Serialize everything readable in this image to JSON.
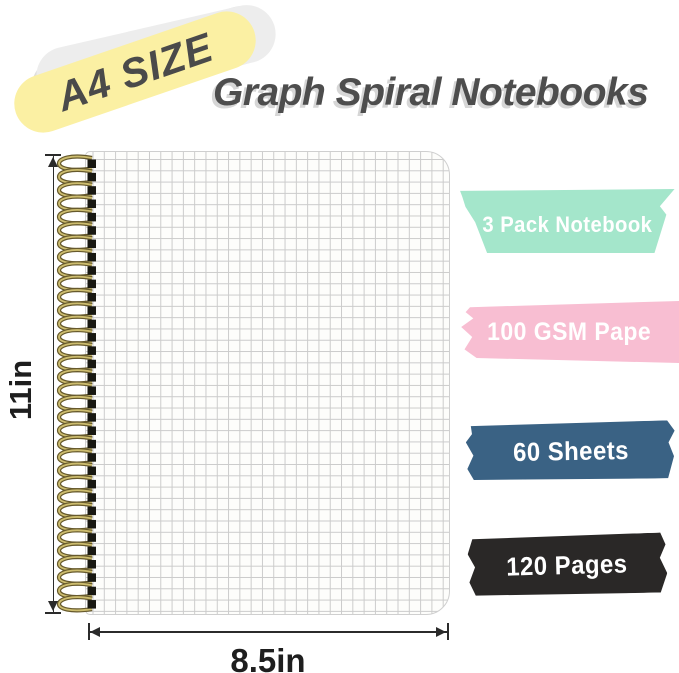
{
  "badge": {
    "label": "A4 SIZE",
    "bg_color": "#fbf0a3",
    "text_color": "#4a4a4a"
  },
  "title": {
    "text": "Graph Spiral Notebooks",
    "color": "#4d4d4d"
  },
  "notebook": {
    "height_label": "11in",
    "width_label": "8.5in",
    "page_color": "#fdfdfb",
    "grid_color": "#cbcbcb",
    "spiral": {
      "wire_color": "#66592c",
      "wire_highlight": "#cdbd6f",
      "hole_color": "#181812"
    }
  },
  "banners": [
    {
      "label": "3 Pack Notebook",
      "color": "#a4e6cb",
      "text_color": "#ffffff"
    },
    {
      "label": "100 GSM Pape",
      "color": "#f8bed2",
      "text_color": "#ffffff"
    },
    {
      "label": "60 Sheets",
      "color": "#3a6284",
      "text_color": "#ffffff"
    },
    {
      "label": "120 Pages",
      "color": "#2a2827",
      "text_color": "#ffffff"
    }
  ]
}
